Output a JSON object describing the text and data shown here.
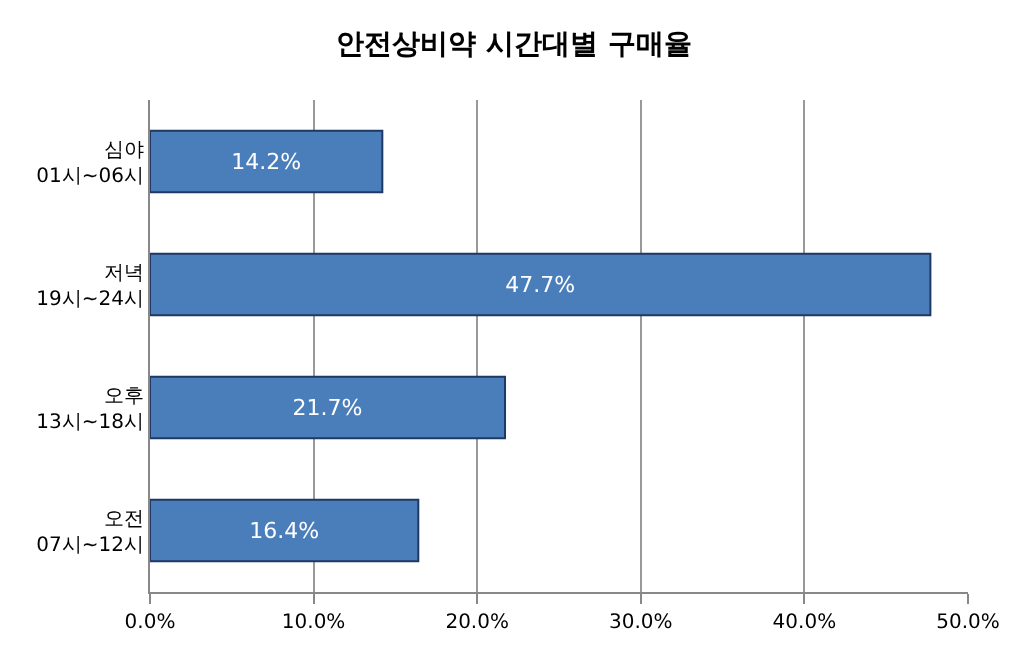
{
  "chart_data": {
    "type": "bar",
    "orientation": "horizontal",
    "title": "안전상비약 시간대별 구매율",
    "categories": [
      "심야\n01시~06시",
      "저녁\n19시~24시",
      "오후\n13시~18시",
      "오전\n07시~12시"
    ],
    "values": [
      14.2,
      47.7,
      21.7,
      16.4
    ],
    "value_labels": [
      "14.2%",
      "47.7%",
      "21.7%",
      "16.4%"
    ],
    "color": "#4a7ebb",
    "xlim": [
      0,
      50
    ],
    "xticks": [
      {
        "value": 0,
        "label": "0.0%"
      },
      {
        "value": 10,
        "label": "10.0%"
      },
      {
        "value": 20,
        "label": "20.0%"
      },
      {
        "value": 30,
        "label": "30.0%"
      },
      {
        "value": 40,
        "label": "40.0%"
      },
      {
        "value": 50,
        "label": "50.0%"
      }
    ],
    "grid": "x",
    "legend": false
  }
}
